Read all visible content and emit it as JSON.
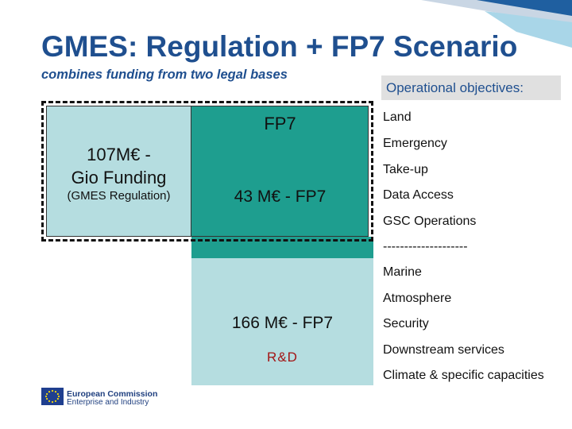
{
  "slide": {
    "title": "GMES: Regulation + FP7 Scenario",
    "subtitle": "combines funding from two legal bases"
  },
  "funding": {
    "fp7_header": "FP7",
    "gio_line1": "107M€ -",
    "gio_line2": "Gio Funding",
    "gio_note": "(GMES Regulation)",
    "fp7_operational": "43 M€ - FP7",
    "fp7_rd_amount": "166 M€ - FP7",
    "fp7_rd_label": "R&D"
  },
  "objectives": {
    "header": "Operational objectives:",
    "items": [
      "Land",
      "Emergency",
      "Take-up",
      "Data Access",
      "GSC Operations",
      "--------------------",
      "Marine",
      "Atmosphere",
      "Security",
      "Downstream services",
      "Climate & specific capacities"
    ]
  },
  "footer": {
    "logo_line1": "European Commission",
    "logo_line2": "Enterprise and Industry"
  },
  "colors": {
    "title": "#1f4f8f",
    "teal": "#1e9e8f",
    "light_teal": "#b5dde0",
    "rd_text": "#a31515"
  }
}
